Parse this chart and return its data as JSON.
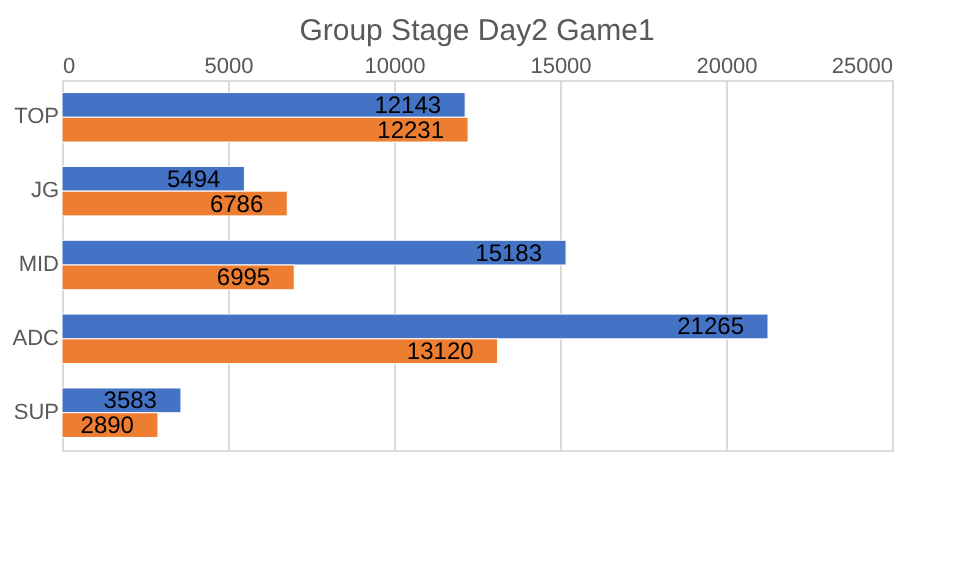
{
  "chart_data": {
    "type": "bar",
    "orientation": "horizontal",
    "title": "Group Stage Day2 Game1",
    "categories": [
      "TOP",
      "JG",
      "MID",
      "ADC",
      "SUP"
    ],
    "series": [
      {
        "color": "#4472c4",
        "values": [
          12143,
          5494,
          15183,
          21265,
          3583
        ]
      },
      {
        "color": "#ed7d31",
        "values": [
          12231,
          6786,
          6995,
          13120,
          2890
        ]
      }
    ],
    "xlim": [
      0,
      25000
    ],
    "xticks": [
      0,
      5000,
      10000,
      15000,
      20000,
      25000
    ],
    "grid": "x",
    "data_labels": true
  }
}
